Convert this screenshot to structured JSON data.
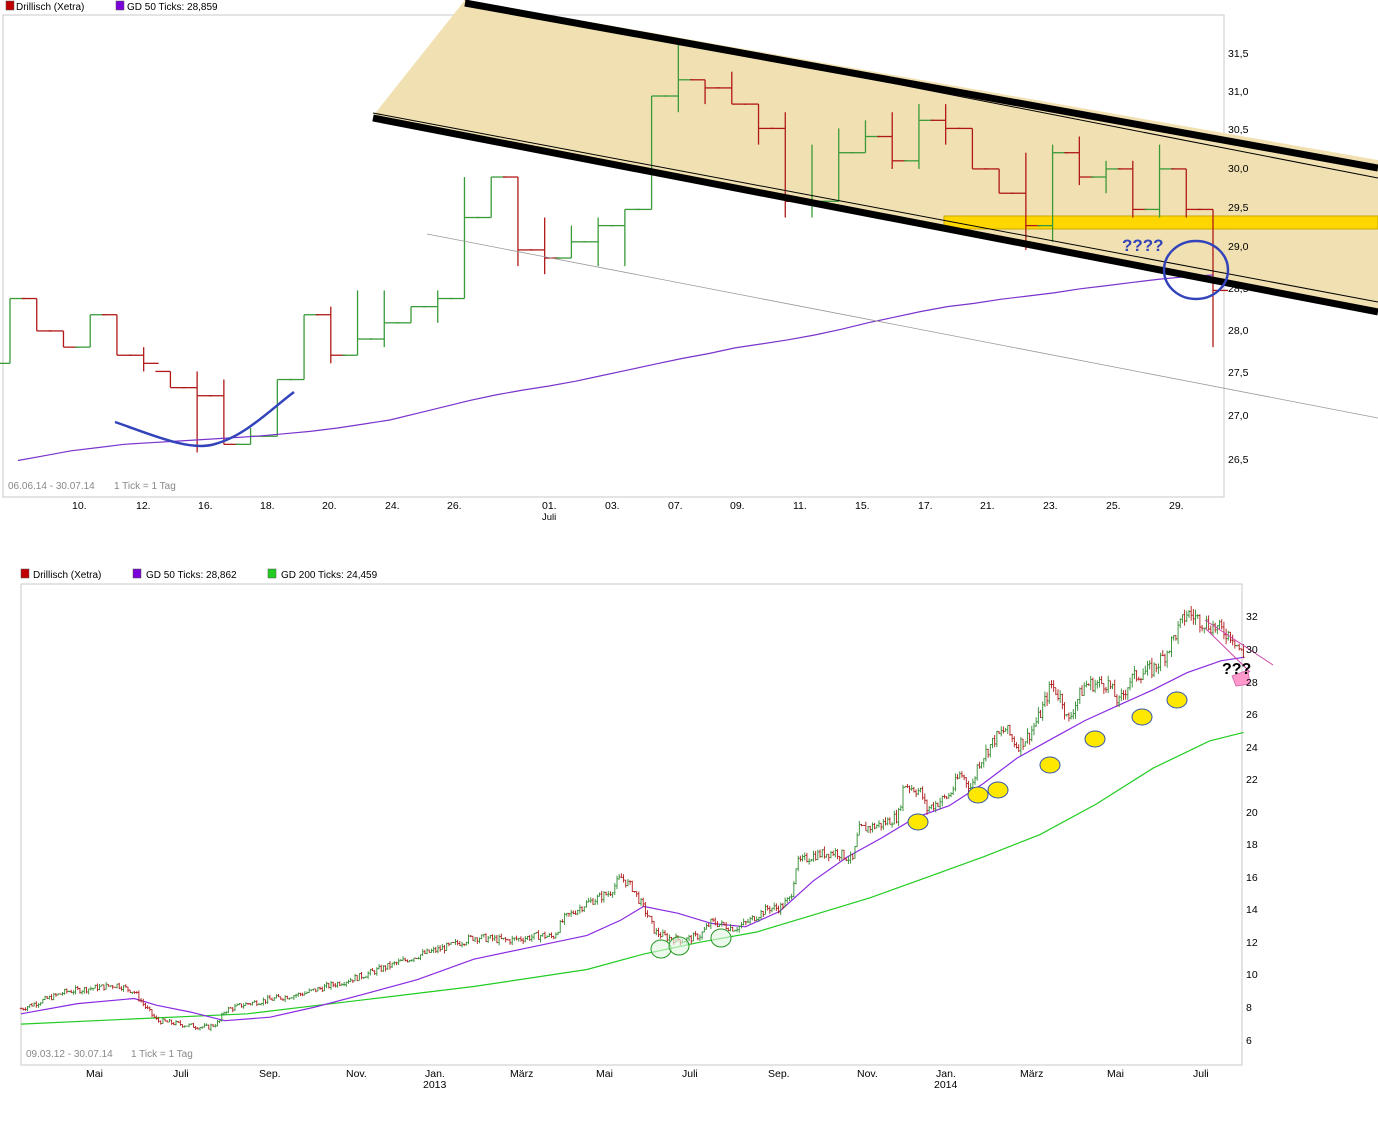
{
  "chart_data": [
    {
      "type": "ohlc",
      "panel": "top",
      "legend": [
        {
          "label": "Drillisch (Xetra)",
          "color": "#c00000"
        },
        {
          "label": "GD 50 Ticks: 28,859",
          "color": "#7a00d8"
        }
      ],
      "period_label": "06.06.14 - 30.07.14",
      "tick_label": "1 Tick = 1 Tag",
      "annotation": "????",
      "y_ticks": [
        "26,5",
        "27,0",
        "27,5",
        "28,0",
        "28,5",
        "29,0",
        "29,5",
        "30,0",
        "30,5",
        "31,0",
        "31,5"
      ],
      "x_ticks": [
        "10.",
        "12.",
        "16.",
        "18.",
        "20.",
        "24.",
        "26.",
        "01.",
        "03.",
        "07.",
        "09.",
        "11.",
        "15.",
        "17.",
        "21.",
        "23.",
        "25.",
        "29."
      ],
      "x_sublabel": "Juli",
      "candles": [
        [
          27.8,
          28.6,
          27.8,
          28.6
        ],
        [
          28.6,
          28.6,
          28.2,
          28.2
        ],
        [
          28.2,
          28.2,
          28.0,
          28.0
        ],
        [
          28.0,
          28.4,
          28.0,
          28.4
        ],
        [
          28.4,
          28.4,
          27.9,
          27.9
        ],
        [
          27.9,
          28.0,
          27.7,
          27.8
        ],
        [
          27.7,
          27.7,
          27.5,
          27.5
        ],
        [
          27.5,
          27.7,
          26.7,
          27.4
        ],
        [
          27.4,
          27.6,
          26.8,
          26.8
        ],
        [
          26.8,
          27.0,
          26.8,
          26.9
        ],
        [
          26.9,
          27.6,
          26.9,
          27.6
        ],
        [
          27.6,
          28.4,
          27.6,
          28.4
        ],
        [
          28.4,
          28.5,
          27.8,
          27.9
        ],
        [
          27.9,
          28.7,
          27.9,
          28.1
        ],
        [
          28.1,
          28.7,
          28.0,
          28.3
        ],
        [
          28.3,
          28.5,
          28.3,
          28.5
        ],
        [
          28.5,
          28.7,
          28.3,
          28.6
        ],
        [
          28.6,
          30.1,
          28.6,
          29.6
        ],
        [
          29.6,
          30.1,
          29.6,
          30.1
        ],
        [
          30.1,
          30.1,
          29.0,
          29.2
        ],
        [
          29.2,
          29.6,
          28.9,
          29.1
        ],
        [
          29.1,
          29.5,
          29.1,
          29.3
        ],
        [
          29.3,
          29.6,
          29.0,
          29.5
        ],
        [
          29.5,
          29.7,
          29.0,
          29.7
        ],
        [
          29.7,
          31.1,
          29.7,
          31.1
        ],
        [
          31.1,
          31.8,
          30.9,
          31.3
        ],
        [
          31.3,
          31.3,
          31.0,
          31.2
        ],
        [
          31.2,
          31.4,
          31.0,
          31.0
        ],
        [
          31.0,
          31.0,
          30.5,
          30.7
        ],
        [
          30.7,
          30.9,
          29.6,
          29.8
        ],
        [
          29.8,
          30.5,
          29.6,
          29.8
        ],
        [
          29.8,
          30.7,
          29.8,
          30.4
        ],
        [
          30.4,
          30.8,
          30.4,
          30.6
        ],
        [
          30.6,
          30.9,
          30.2,
          30.3
        ],
        [
          30.3,
          31.0,
          30.2,
          30.8
        ],
        [
          30.8,
          31.0,
          30.5,
          30.7
        ],
        [
          30.7,
          30.7,
          30.2,
          30.2
        ],
        [
          30.2,
          30.2,
          29.9,
          29.9
        ],
        [
          29.9,
          30.4,
          29.2,
          29.5
        ],
        [
          29.5,
          30.5,
          29.3,
          30.4
        ],
        [
          30.4,
          30.6,
          30.0,
          30.1
        ],
        [
          30.1,
          30.3,
          29.9,
          30.2
        ],
        [
          30.2,
          30.3,
          29.6,
          29.7
        ],
        [
          29.7,
          30.5,
          29.6,
          30.2
        ],
        [
          30.2,
          30.2,
          29.6,
          29.7
        ],
        [
          29.7,
          29.7,
          28.0,
          28.7
        ]
      ],
      "sma50": [
        26.6,
        26.66,
        26.72,
        26.76,
        26.8,
        26.82,
        26.84,
        26.86,
        26.88,
        26.9,
        26.93,
        26.96,
        27.0,
        27.05,
        27.1,
        27.18,
        27.26,
        27.34,
        27.41,
        27.47,
        27.52,
        27.58,
        27.65,
        27.72,
        27.79,
        27.86,
        27.92,
        27.99,
        28.04,
        28.09,
        28.15,
        28.22,
        28.3,
        28.37,
        28.44,
        28.5,
        28.54,
        28.59,
        28.63,
        28.67,
        28.72,
        28.76,
        28.8,
        28.84,
        28.87,
        28.89
      ],
      "ylim": [
        26.15,
        32.1
      ]
    },
    {
      "type": "ohlc",
      "panel": "bottom",
      "legend": [
        {
          "label": "Drillisch (Xetra)",
          "color": "#c00000"
        },
        {
          "label": "GD 50 Ticks: 28,862",
          "color": "#7a00d8"
        },
        {
          "label": "GD 200 Ticks: 24,459",
          "color": "#22cc22"
        }
      ],
      "period_label": "09.03.12 - 30.07.14",
      "tick_label": "1 Tick = 1 Tag",
      "annotation": "???",
      "y_ticks": [
        "6",
        "8",
        "10",
        "12",
        "14",
        "16",
        "18",
        "20",
        "22",
        "24",
        "26",
        "28",
        "30",
        "32"
      ],
      "x_ticks": [
        "Mai",
        "Juli",
        "Sep.",
        "Nov.",
        "Jan.",
        "März",
        "Mai",
        "Juli",
        "Sep.",
        "Nov.",
        "Jan.",
        "März",
        "Mai",
        "Juli"
      ],
      "x_year_labels": [
        "2013",
        "2014"
      ],
      "price_path": [
        [
          0,
          8.3
        ],
        [
          0.04,
          9.3
        ],
        [
          0.085,
          9.7
        ],
        [
          0.1,
          9.3
        ],
        [
          0.11,
          8.4
        ],
        [
          0.12,
          7.6
        ],
        [
          0.15,
          7.3
        ],
        [
          0.165,
          7.2
        ],
        [
          0.175,
          7.5
        ],
        [
          0.18,
          8.2
        ],
        [
          0.2,
          8.6
        ],
        [
          0.25,
          9.2
        ],
        [
          0.3,
          10.2
        ],
        [
          0.35,
          11.4
        ],
        [
          0.38,
          12.0
        ],
        [
          0.4,
          12.5
        ],
        [
          0.43,
          12.3
        ],
        [
          0.46,
          12.6
        ],
        [
          0.47,
          12.5
        ],
        [
          0.48,
          13.6
        ],
        [
          0.5,
          14.5
        ],
        [
          0.52,
          15.1
        ],
        [
          0.53,
          16.0
        ],
        [
          0.54,
          15.4
        ],
        [
          0.555,
          13.6
        ],
        [
          0.56,
          12.8
        ],
        [
          0.57,
          12.5
        ],
        [
          0.585,
          12.3
        ],
        [
          0.6,
          12.6
        ],
        [
          0.61,
          13.4
        ],
        [
          0.63,
          13.0
        ],
        [
          0.64,
          13.3
        ],
        [
          0.66,
          14.2
        ],
        [
          0.67,
          14.2
        ],
        [
          0.68,
          14.8
        ],
        [
          0.685,
          16.8
        ],
        [
          0.7,
          17.3
        ],
        [
          0.72,
          17.5
        ],
        [
          0.735,
          17.0
        ],
        [
          0.74,
          18.8
        ],
        [
          0.76,
          19.1
        ],
        [
          0.775,
          19.6
        ],
        [
          0.78,
          21.5
        ],
        [
          0.795,
          21.0
        ],
        [
          0.8,
          20.0
        ],
        [
          0.82,
          20.8
        ],
        [
          0.83,
          22.1
        ],
        [
          0.84,
          21.2
        ],
        [
          0.845,
          22.6
        ],
        [
          0.86,
          24.1
        ],
        [
          0.87,
          24.7
        ],
        [
          0.88,
          23.7
        ],
        [
          0.89,
          24.3
        ],
        [
          0.9,
          25.5
        ],
        [
          0.91,
          27.3
        ],
        [
          0.92,
          26.4
        ],
        [
          0.925,
          25.0
        ],
        [
          0.93,
          26.0
        ],
        [
          0.94,
          27.3
        ],
        [
          0.96,
          27.4
        ],
        [
          0.97,
          26.2
        ],
        [
          0.98,
          27.6
        ],
        [
          0.99,
          28.0
        ],
        [
          1.0,
          28.2
        ],
        [
          1.01,
          29.0
        ],
        [
          1.03,
          31.5
        ],
        [
          1.05,
          30.8
        ],
        [
          1.07,
          30.2
        ],
        [
          1.08,
          28.9
        ]
      ],
      "sma50_path": [
        [
          0,
          8.0
        ],
        [
          0.05,
          8.6
        ],
        [
          0.1,
          8.9
        ],
        [
          0.12,
          8.5
        ],
        [
          0.15,
          8.1
        ],
        [
          0.18,
          7.6
        ],
        [
          0.22,
          7.8
        ],
        [
          0.26,
          8.4
        ],
        [
          0.3,
          9.1
        ],
        [
          0.35,
          10.0
        ],
        [
          0.4,
          11.2
        ],
        [
          0.45,
          11.9
        ],
        [
          0.5,
          12.6
        ],
        [
          0.53,
          13.5
        ],
        [
          0.55,
          14.3
        ],
        [
          0.58,
          13.9
        ],
        [
          0.61,
          13.3
        ],
        [
          0.64,
          13.1
        ],
        [
          0.67,
          14.0
        ],
        [
          0.7,
          15.8
        ],
        [
          0.73,
          17.2
        ],
        [
          0.76,
          18.3
        ],
        [
          0.79,
          19.5
        ],
        [
          0.82,
          20.2
        ],
        [
          0.85,
          21.5
        ],
        [
          0.88,
          23.0
        ],
        [
          0.91,
          24.1
        ],
        [
          0.94,
          25.2
        ],
        [
          0.97,
          26.1
        ],
        [
          1.0,
          27.0
        ],
        [
          1.03,
          28.0
        ],
        [
          1.06,
          28.7
        ],
        [
          1.08,
          28.9
        ]
      ],
      "sma200_path": [
        [
          0,
          7.4
        ],
        [
          0.1,
          7.7
        ],
        [
          0.2,
          8.0
        ],
        [
          0.3,
          8.8
        ],
        [
          0.4,
          9.6
        ],
        [
          0.5,
          10.6
        ],
        [
          0.55,
          11.5
        ],
        [
          0.6,
          12.2
        ],
        [
          0.65,
          12.8
        ],
        [
          0.7,
          13.8
        ],
        [
          0.75,
          14.8
        ],
        [
          0.8,
          16.0
        ],
        [
          0.85,
          17.2
        ],
        [
          0.9,
          18.5
        ],
        [
          0.95,
          20.3
        ],
        [
          1.0,
          22.4
        ],
        [
          1.05,
          24.0
        ],
        [
          1.08,
          24.5
        ]
      ],
      "ylim": [
        5.0,
        33.2
      ]
    }
  ]
}
